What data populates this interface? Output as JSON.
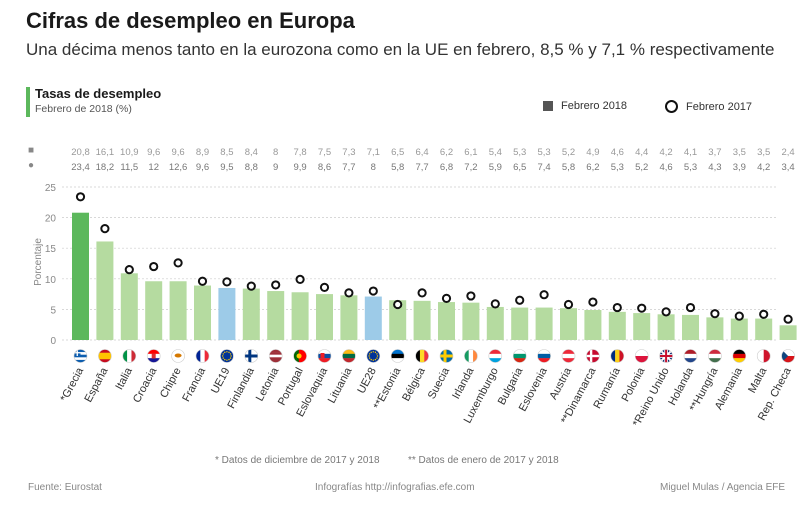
{
  "header": {
    "title": "Cifras de desempleo en Europa",
    "subtitle": "Una décima menos tanto en la eurozona como en la UE en febrero, 8,5 % y 7,1 % respectivamente"
  },
  "section": {
    "title": "Tasas de desempleo",
    "subtitle": "Febrero de 2018 (%)"
  },
  "legend": {
    "feb2018": "Febrero 2018",
    "feb2017": "Febrero 2017"
  },
  "rows": {
    "symbol2018": "■",
    "symbol2017": "●"
  },
  "colors": {
    "highlight": "#5cb85c",
    "normal": "#b5dba0",
    "aggregate": "#9dcbe8",
    "marker_stroke": "#111111",
    "grid": "#cccccc"
  },
  "chart_data": {
    "type": "bar",
    "title": "Tasas de desempleo",
    "ylabel": "Porcentaje",
    "ylim": [
      0,
      25
    ],
    "yticks": [
      0,
      5,
      10,
      15,
      20,
      25
    ],
    "categories": [
      {
        "name": "*Grecia",
        "v2018": 20.8,
        "v2017": 23.4,
        "l2018": "20,8",
        "l2017": "23,4",
        "kind": "highlight",
        "flag": "greece"
      },
      {
        "name": "España",
        "v2018": 16.1,
        "v2017": 18.2,
        "l2018": "16,1",
        "l2017": "18,2",
        "kind": "normal",
        "flag": "spain"
      },
      {
        "name": "Italia",
        "v2018": 10.9,
        "v2017": 11.5,
        "l2018": "10,9",
        "l2017": "11,5",
        "kind": "normal",
        "flag": "italy"
      },
      {
        "name": "Croacia",
        "v2018": 9.6,
        "v2017": 12,
        "l2018": "9,6",
        "l2017": "12",
        "kind": "normal",
        "flag": "croatia"
      },
      {
        "name": "Chipre",
        "v2018": 9.6,
        "v2017": 12.6,
        "l2018": "9,6",
        "l2017": "12,6",
        "kind": "normal",
        "flag": "cyprus"
      },
      {
        "name": "Francia",
        "v2018": 8.9,
        "v2017": 9.6,
        "l2018": "8,9",
        "l2017": "9,6",
        "kind": "normal",
        "flag": "france"
      },
      {
        "name": "UE19",
        "v2018": 8.5,
        "v2017": 9.5,
        "l2018": "8,5",
        "l2017": "9,5",
        "kind": "aggregate",
        "flag": "eu"
      },
      {
        "name": "Finlandia",
        "v2018": 8.4,
        "v2017": 8.8,
        "l2018": "8,4",
        "l2017": "8,8",
        "kind": "normal",
        "flag": "finland"
      },
      {
        "name": "Letonia",
        "v2018": 8,
        "v2017": 9,
        "l2018": "8",
        "l2017": "9",
        "kind": "normal",
        "flag": "latvia"
      },
      {
        "name": "Portugal",
        "v2018": 7.8,
        "v2017": 9.9,
        "l2018": "7,8",
        "l2017": "9,9",
        "kind": "normal",
        "flag": "portugal"
      },
      {
        "name": "Eslovaquia",
        "v2018": 7.5,
        "v2017": 8.6,
        "l2018": "7,5",
        "l2017": "8,6",
        "kind": "normal",
        "flag": "slovakia"
      },
      {
        "name": "Lituania",
        "v2018": 7.3,
        "v2017": 7.7,
        "l2018": "7,3",
        "l2017": "7,7",
        "kind": "normal",
        "flag": "lithuania"
      },
      {
        "name": "UE28",
        "v2018": 7.1,
        "v2017": 8,
        "l2018": "7,1",
        "l2017": "8",
        "kind": "aggregate",
        "flag": "eu"
      },
      {
        "name": "**Estonia",
        "v2018": 6.5,
        "v2017": 5.8,
        "l2018": "6,5",
        "l2017": "5,8",
        "kind": "normal",
        "flag": "estonia"
      },
      {
        "name": "Bélgica",
        "v2018": 6.4,
        "v2017": 7.7,
        "l2018": "6,4",
        "l2017": "7,7",
        "kind": "normal",
        "flag": "belgium"
      },
      {
        "name": "Suecia",
        "v2018": 6.2,
        "v2017": 6.8,
        "l2018": "6,2",
        "l2017": "6,8",
        "kind": "normal",
        "flag": "sweden"
      },
      {
        "name": "Irlanda",
        "v2018": 6.1,
        "v2017": 7.2,
        "l2018": "6,1",
        "l2017": "7,2",
        "kind": "normal",
        "flag": "ireland"
      },
      {
        "name": "Luxemburgo",
        "v2018": 5.4,
        "v2017": 5.9,
        "l2018": "5,4",
        "l2017": "5,9",
        "kind": "normal",
        "flag": "luxembourg"
      },
      {
        "name": "Bulgaria",
        "v2018": 5.3,
        "v2017": 6.5,
        "l2018": "5,3",
        "l2017": "6,5",
        "kind": "normal",
        "flag": "bulgaria"
      },
      {
        "name": "Eslovenia",
        "v2018": 5.3,
        "v2017": 7.4,
        "l2018": "5,3",
        "l2017": "7,4",
        "kind": "normal",
        "flag": "slovenia"
      },
      {
        "name": "Austria",
        "v2018": 5.2,
        "v2017": 5.8,
        "l2018": "5,2",
        "l2017": "5,8",
        "kind": "normal",
        "flag": "austria"
      },
      {
        "name": "**Dinamarca",
        "v2018": 4.9,
        "v2017": 6.2,
        "l2018": "4,9",
        "l2017": "6,2",
        "kind": "normal",
        "flag": "denmark"
      },
      {
        "name": "Rumanía",
        "v2018": 4.6,
        "v2017": 5.3,
        "l2018": "4,6",
        "l2017": "5,3",
        "kind": "normal",
        "flag": "romania"
      },
      {
        "name": "Polonia",
        "v2018": 4.4,
        "v2017": 5.2,
        "l2018": "4,4",
        "l2017": "5,2",
        "kind": "normal",
        "flag": "poland"
      },
      {
        "name": "*Reino Unido",
        "v2018": 4.2,
        "v2017": 4.6,
        "l2018": "4,2",
        "l2017": "4,6",
        "kind": "normal",
        "flag": "uk"
      },
      {
        "name": "Holanda",
        "v2018": 4.1,
        "v2017": 5.3,
        "l2018": "4,1",
        "l2017": "5,3",
        "kind": "normal",
        "flag": "netherlands"
      },
      {
        "name": "**Hungría",
        "v2018": 3.7,
        "v2017": 4.3,
        "l2018": "3,7",
        "l2017": "4,3",
        "kind": "normal",
        "flag": "hungary"
      },
      {
        "name": "Alemania",
        "v2018": 3.5,
        "v2017": 3.9,
        "l2018": "3,5",
        "l2017": "3,9",
        "kind": "normal",
        "flag": "germany"
      },
      {
        "name": "Malta",
        "v2018": 3.5,
        "v2017": 4.2,
        "l2018": "3,5",
        "l2017": "4,2",
        "kind": "normal",
        "flag": "malta"
      },
      {
        "name": "Rep. Checa",
        "v2018": 2.4,
        "v2017": 3.4,
        "l2018": "2,4",
        "l2017": "3,4",
        "kind": "normal",
        "flag": "czech"
      }
    ]
  },
  "notes": {
    "note1": "* Datos de diciembre de 2017 y 2018",
    "note2": "** Datos de enero de 2017 y 2018"
  },
  "footer": {
    "source": "Fuente: Eurostat",
    "site": "Infografías http://infografias.efe.com",
    "credit": "Miguel Mulas / Agencia EFE"
  }
}
